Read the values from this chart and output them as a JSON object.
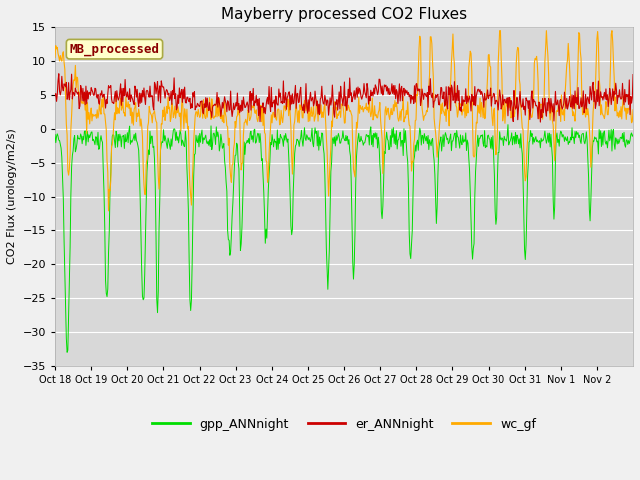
{
  "title": "Mayberry processed CO2 Fluxes",
  "ylabel": "CO2 Flux (urology/m2/s)",
  "ylim": [
    -35,
    15
  ],
  "yticks": [
    -35,
    -30,
    -25,
    -20,
    -15,
    -10,
    -5,
    0,
    5,
    10,
    15
  ],
  "xlabel_ticks": [
    "Oct 18",
    "Oct 19",
    "Oct 20",
    "Oct 21",
    "Oct 22",
    "Oct 23",
    "Oct 24",
    "Oct 25",
    "Oct 26",
    "Oct 27",
    "Oct 28",
    "Oct 29",
    "Oct 30",
    "Oct 31",
    "Nov 1",
    "Nov 2"
  ],
  "color_gpp": "#00dd00",
  "color_er": "#cc0000",
  "color_wc": "#ffaa00",
  "legend_label_gpp": "gpp_ANNnight",
  "legend_label_er": "er_ANNnight",
  "legend_label_wc": "wc_gf",
  "watermark_text": "MB_processed",
  "watermark_color": "#8b0000",
  "watermark_bg": "#ffffcc",
  "fig_bg": "#f0f0f0",
  "plot_bg": "#d8d8d8",
  "title_fontsize": 11,
  "n_days": 16,
  "half_hours_per_day": 48,
  "figsize": [
    6.4,
    4.8
  ],
  "dpi": 100
}
